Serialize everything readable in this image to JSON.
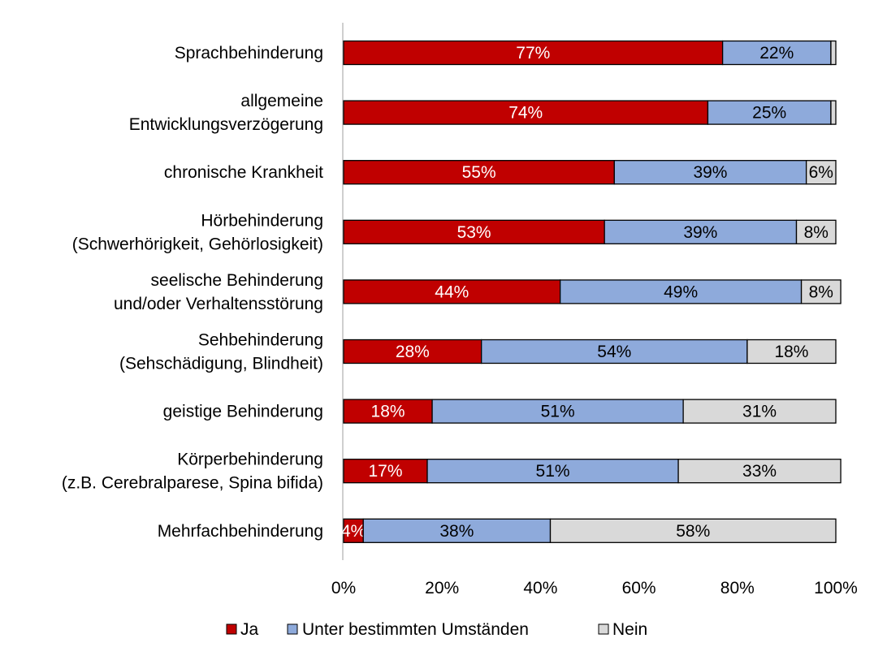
{
  "chart_data": {
    "type": "bar",
    "orientation": "horizontal",
    "stacked": "percent",
    "categories": [
      [
        "Sprachbehinderung"
      ],
      [
        "allgemeine",
        "Entwicklungsverzögerung"
      ],
      [
        "chronische Krankheit"
      ],
      [
        "Hörbehinderung",
        "(Schwerhörigkeit, Gehörlosigkeit)"
      ],
      [
        "seelische Behinderung",
        "und/oder Verhaltensstörung"
      ],
      [
        "Sehbehinderung",
        "(Sehschädigung, Blindheit)"
      ],
      [
        "geistige Behinderung"
      ],
      [
        "Körperbehinderung",
        "(z.B. Cerebralparese, Spina bifida)"
      ],
      [
        "Mehrfachbehinderung"
      ]
    ],
    "series": [
      {
        "name": "Ja",
        "color": "#c00000",
        "label_color": "#ffffff",
        "values": [
          77,
          74,
          55,
          53,
          44,
          28,
          18,
          17,
          4
        ],
        "labels": [
          "77%",
          "74%",
          "55%",
          "53%",
          "44%",
          "28%",
          "18%",
          "17%",
          "4%"
        ]
      },
      {
        "name": "Unter bestimmten Umständen",
        "color": "#8eaadb",
        "label_color": "#000000",
        "values": [
          22,
          25,
          39,
          39,
          49,
          54,
          51,
          51,
          38
        ],
        "labels": [
          "22%",
          "25%",
          "39%",
          "39%",
          "49%",
          "54%",
          "51%",
          "51%",
          "38%"
        ]
      },
      {
        "name": "Nein",
        "color": "#d9d9d9",
        "label_color": "#000000",
        "values": [
          1,
          1,
          6,
          8,
          8,
          18,
          31,
          33,
          58
        ],
        "labels": [
          "",
          "",
          "6%",
          "8%",
          "8%",
          "18%",
          "31%",
          "33%",
          "58%"
        ]
      }
    ],
    "xlim": [
      0,
      100
    ],
    "x_ticks": [
      "0%",
      "20%",
      "40%",
      "60%",
      "80%",
      "100%"
    ],
    "title": "",
    "xlabel": "",
    "ylabel": "",
    "grid": false,
    "legend_position": "bottom"
  }
}
